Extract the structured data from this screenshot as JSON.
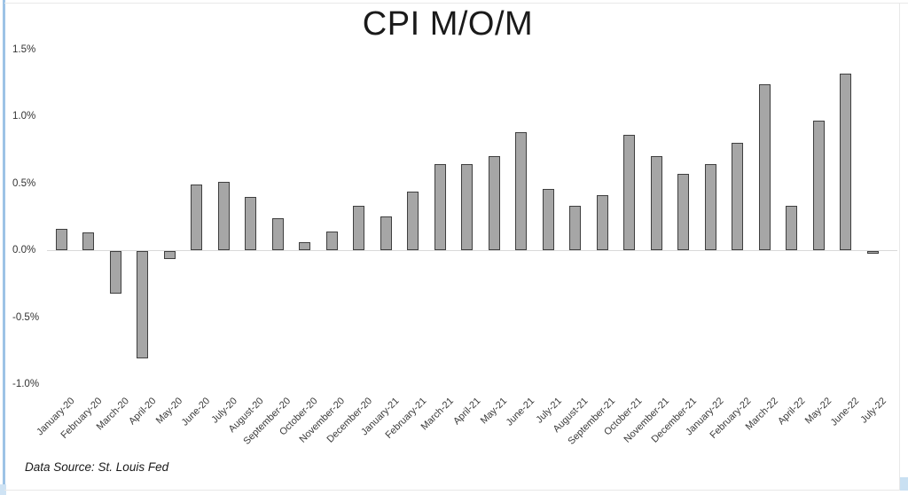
{
  "chart_data": {
    "type": "bar",
    "title": "CPI M/O/M",
    "categories": [
      "January-20",
      "February-20",
      "March-20",
      "April-20",
      "May-20",
      "June-20",
      "July-20",
      "August-20",
      "September-20",
      "October-20",
      "November-20",
      "December-20",
      "January-21",
      "February-21",
      "March-21",
      "April-21",
      "May-21",
      "June-21",
      "July-21",
      "August-21",
      "September-21",
      "October-21",
      "November-21",
      "December-21",
      "January-22",
      "February-22",
      "March-22",
      "April-22",
      "May-22",
      "June-22",
      "July-22"
    ],
    "values": [
      0.16,
      0.13,
      -0.32,
      -0.8,
      -0.06,
      0.49,
      0.51,
      0.4,
      0.24,
      0.06,
      0.14,
      0.33,
      0.25,
      0.44,
      0.64,
      0.64,
      0.7,
      0.88,
      0.46,
      0.33,
      0.41,
      0.86,
      0.7,
      0.57,
      0.64,
      0.8,
      1.24,
      0.33,
      0.97,
      1.32,
      -0.02
    ],
    "ytick_labels": [
      "1.5%",
      "1.0%",
      "0.5%",
      "0.0%",
      "-0.5%",
      "-1.0%"
    ],
    "ylim": [
      -1.0,
      1.5
    ],
    "xlabel": "",
    "ylabel": "",
    "grid": false,
    "legend": null,
    "bar_fill": "#a6a6a6",
    "bar_border": "#3f3f3f",
    "axis_line_color": "#d9d9d9"
  },
  "source_note": "Data Source: St. Louis Fed"
}
